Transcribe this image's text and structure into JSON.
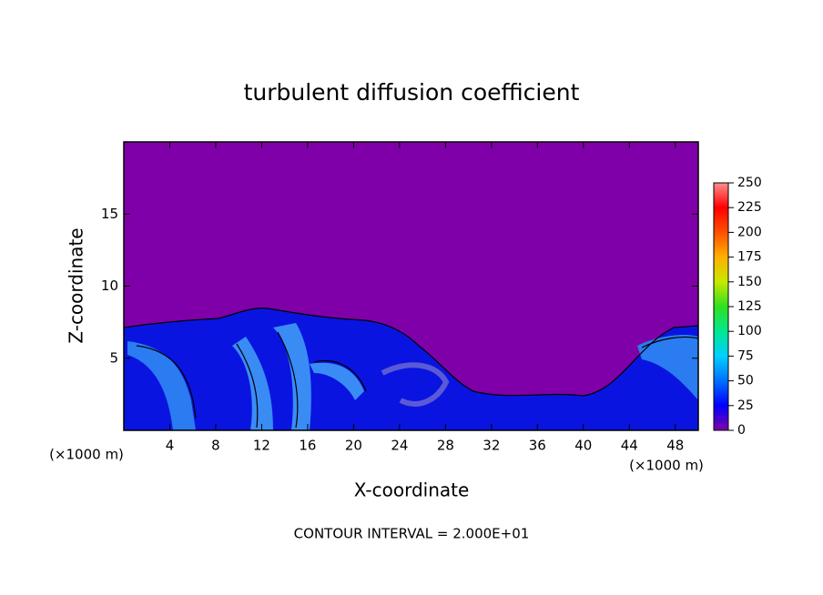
{
  "chart_data": {
    "type": "contour",
    "title": "turbulent diffusion coefficient",
    "x_label": "X-coordinate",
    "y_label": "Z-coordinate",
    "x_unit_label": "(×1000 m)",
    "y_unit_label": "(×1000 m)",
    "note": "CONTOUR INTERVAL = 2.000E+01",
    "xlim": [
      0,
      50
    ],
    "ylim": [
      0,
      20
    ],
    "xticks": [
      4,
      8,
      12,
      16,
      20,
      24,
      28,
      32,
      36,
      40,
      44,
      48
    ],
    "yticks": [
      5,
      10,
      15
    ],
    "colorbar": {
      "lim": [
        0,
        250
      ],
      "ticks": [
        0,
        25,
        50,
        75,
        100,
        125,
        150,
        175,
        200,
        225,
        250
      ],
      "colors": [
        "#7f00a8",
        "#0000ff",
        "#0070ff",
        "#00d0ff",
        "#00e890",
        "#30e020",
        "#c8e800",
        "#ffb000",
        "#ff5000",
        "#ff0000",
        "#ff9090"
      ]
    }
  }
}
